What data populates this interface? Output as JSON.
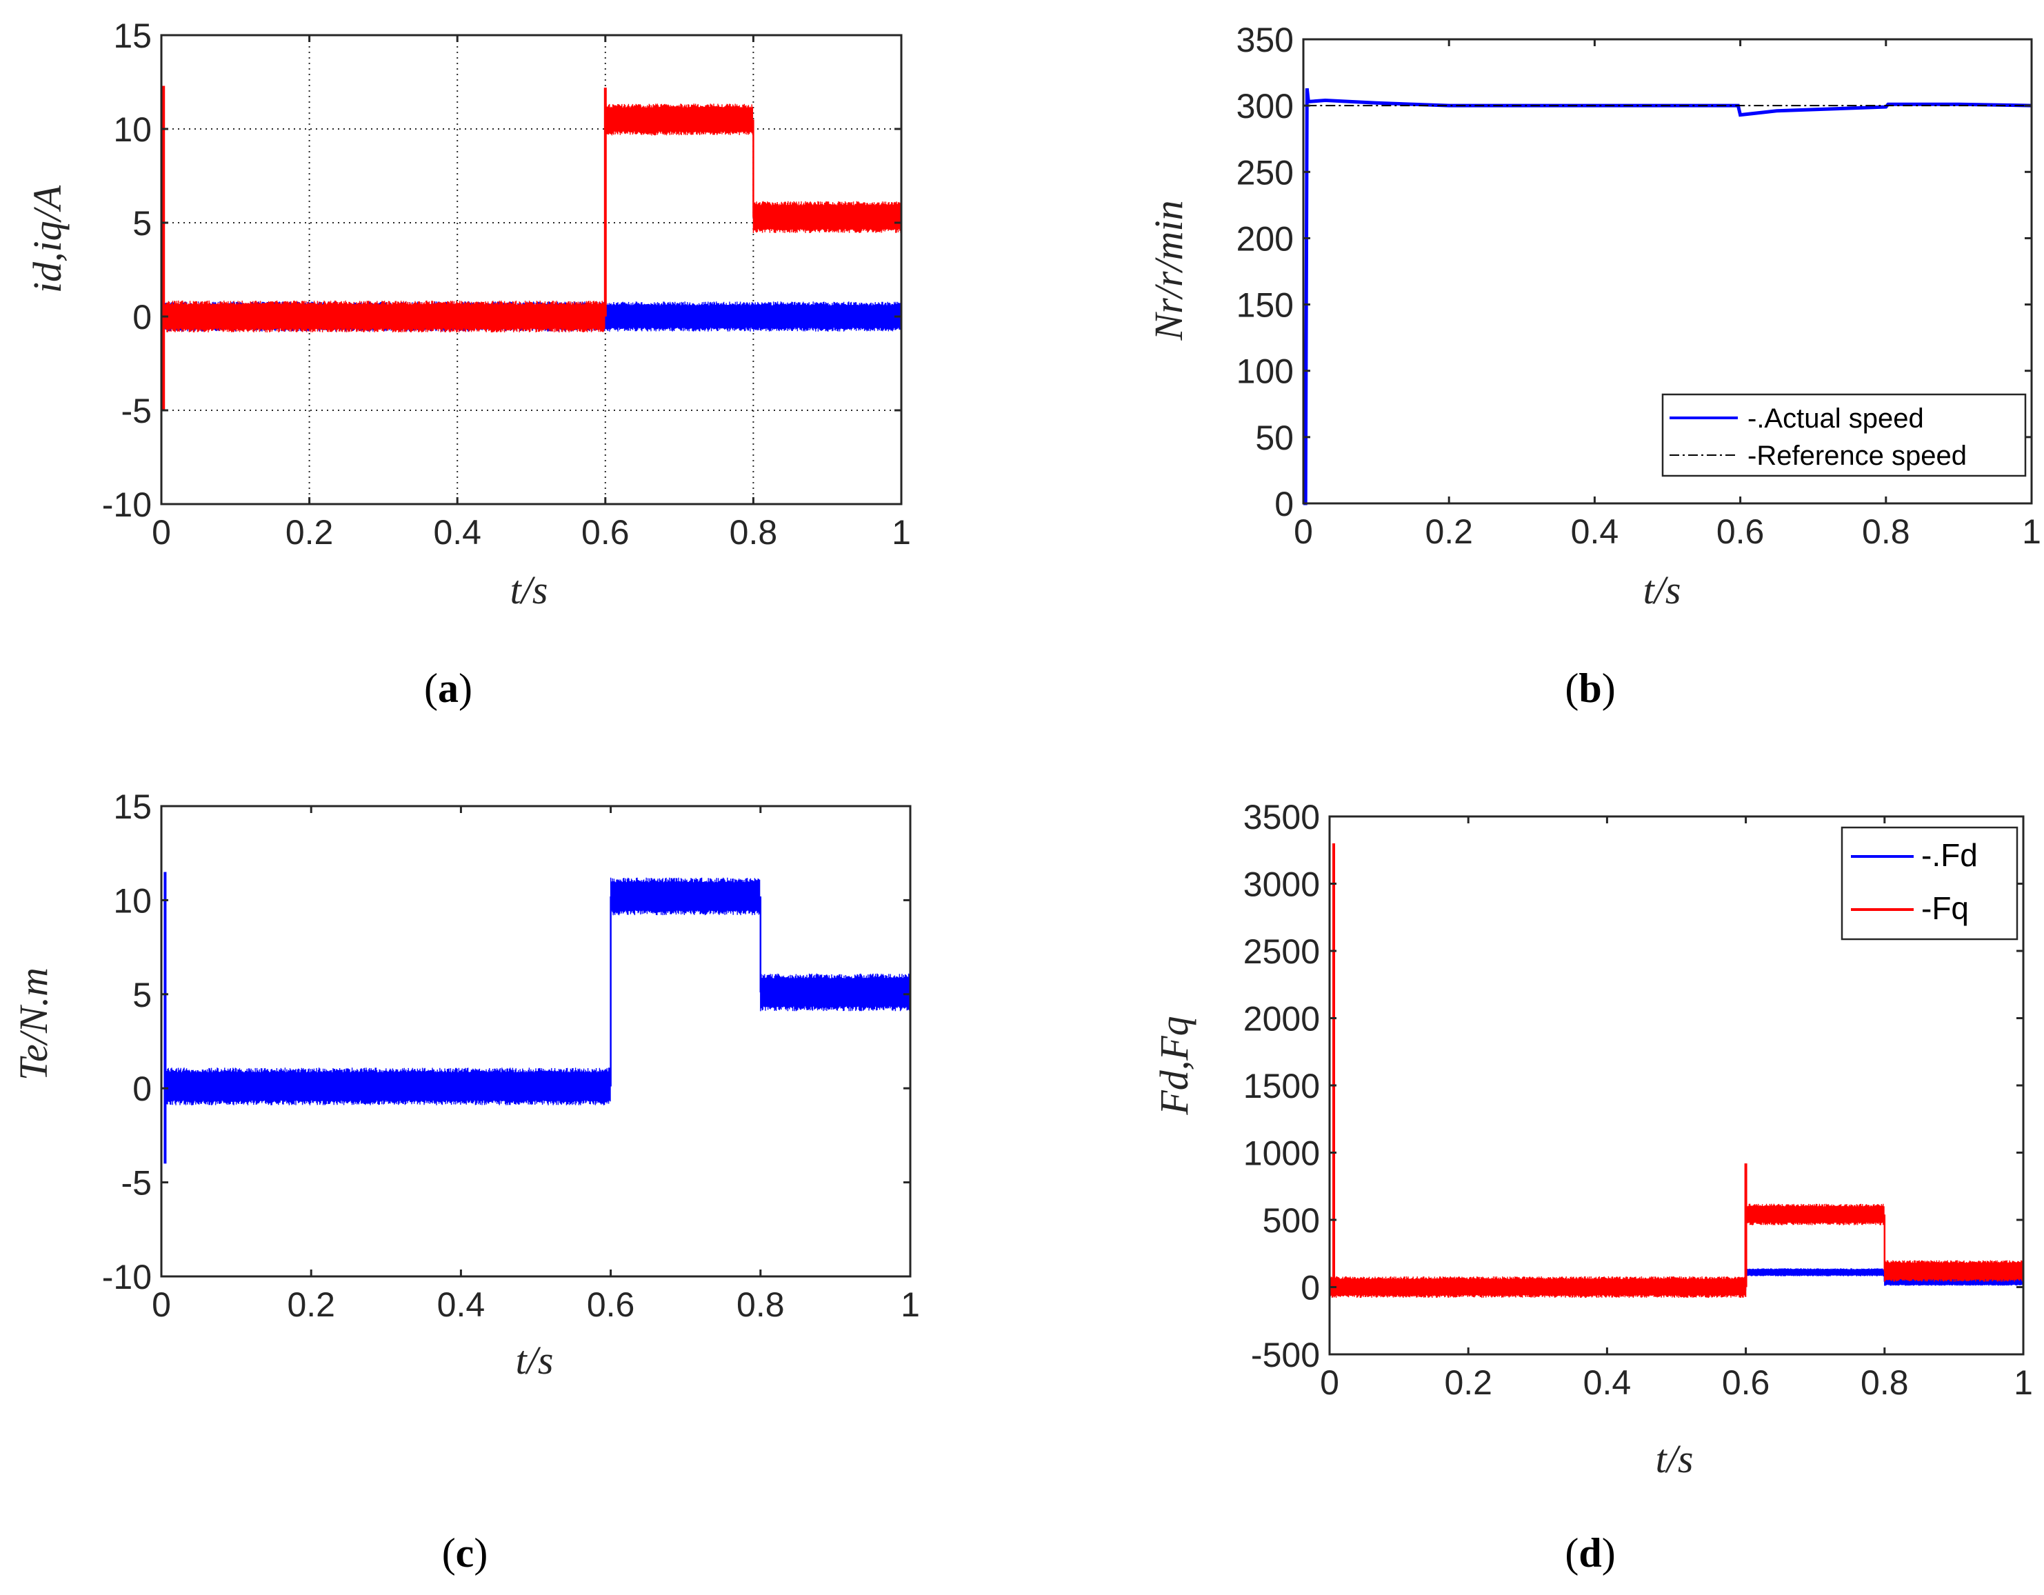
{
  "colors": {
    "id_blue": "#0000ff",
    "iq_red": "#ff0000",
    "axis": "#262626",
    "grid": "#262626",
    "reference": "#000000"
  },
  "chart_data": [
    {
      "panel": "a",
      "type": "line",
      "caption_letter": "a",
      "xlabel": "t/s",
      "ylabel": "id,iq/A",
      "xlim": [
        0,
        1
      ],
      "ylim": [
        -10,
        15
      ],
      "xticks": [
        "0",
        "0.2",
        "0.4",
        "0.6",
        "0.8",
        "1"
      ],
      "xtick_values": [
        0,
        0.2,
        0.4,
        0.6,
        0.8,
        1
      ],
      "yticks": [
        "-10",
        "-5",
        "0",
        "5",
        "10",
        "15"
      ],
      "ytick_values": [
        -10,
        -5,
        0,
        5,
        10,
        15
      ],
      "grid": true,
      "series": [
        {
          "name": "id",
          "color": "#0000ff",
          "noise": 0.8,
          "segments": [
            {
              "x0": 0.003,
              "x1": 1.0,
              "y": 0
            }
          ],
          "spikes": []
        },
        {
          "name": "iq",
          "color": "#ff0000",
          "noise": 0.85,
          "segments": [
            {
              "x0": 0.003,
              "x1": 0.6,
              "y": 0
            },
            {
              "x0": 0.6,
              "x1": 0.8,
              "y": 10.5
            },
            {
              "x0": 0.8,
              "x1": 1.0,
              "y": 5.3
            }
          ],
          "spikes": [
            {
              "x": 0.003,
              "ymin": -5,
              "ymax": 12.3
            },
            {
              "x": 0.6,
              "ymin": 0,
              "ymax": 12.2
            }
          ]
        }
      ]
    },
    {
      "panel": "b",
      "type": "line",
      "caption_letter": "b",
      "xlabel": "t/s",
      "ylabel": "Nr/r/min",
      "xlim": [
        0,
        1
      ],
      "ylim": [
        0,
        350
      ],
      "xticks": [
        "0",
        "0.2",
        "0.4",
        "0.6",
        "0.8",
        "1"
      ],
      "xtick_values": [
        0,
        0.2,
        0.4,
        0.6,
        0.8,
        1
      ],
      "yticks": [
        "0",
        "50",
        "100",
        "150",
        "200",
        "250",
        "300",
        "350"
      ],
      "ytick_values": [
        0,
        50,
        100,
        150,
        200,
        250,
        300,
        350
      ],
      "grid": false,
      "legend": {
        "position": "bottom-right",
        "entries": [
          "-.Actual speed",
          "-Reference speed"
        ]
      },
      "series": [
        {
          "name": "-.Actual speed",
          "color": "#0000ff",
          "points": [
            [
              0,
              0
            ],
            [
              0.003,
              0
            ],
            [
              0.005,
              313
            ],
            [
              0.007,
              303
            ],
            [
              0.03,
              304
            ],
            [
              0.1,
              302
            ],
            [
              0.2,
              300
            ],
            [
              0.4,
              300
            ],
            [
              0.597,
              300
            ],
            [
              0.6,
              293
            ],
            [
              0.65,
              296
            ],
            [
              0.8,
              299
            ],
            [
              0.803,
              301
            ],
            [
              0.9,
              301
            ],
            [
              1.0,
              300
            ]
          ]
        },
        {
          "name": "-Reference speed",
          "color": "#000000",
          "dashed": true,
          "points": [
            [
              0.005,
              300
            ],
            [
              1.0,
              300
            ]
          ]
        }
      ]
    },
    {
      "panel": "c",
      "type": "line",
      "caption_letter": "c",
      "xlabel": "t/s",
      "ylabel": "Te/N.m",
      "xlim": [
        0,
        1
      ],
      "ylim": [
        -10,
        15
      ],
      "xticks": [
        "0",
        "0.2",
        "0.4",
        "0.6",
        "0.8",
        "1"
      ],
      "xtick_values": [
        0,
        0.2,
        0.4,
        0.6,
        0.8,
        1
      ],
      "yticks": [
        "-10",
        "-5",
        "0",
        "5",
        "10",
        "15"
      ],
      "ytick_values": [
        -10,
        -5,
        0,
        5,
        10,
        15
      ],
      "grid": false,
      "series": [
        {
          "name": "Te",
          "color": "#0000ff",
          "noise": 1.0,
          "segments": [
            {
              "x0": 0.005,
              "x1": 0.6,
              "y": 0.1
            },
            {
              "x0": 0.6,
              "x1": 0.8,
              "y": 10.2
            },
            {
              "x0": 0.8,
              "x1": 1.0,
              "y": 5.1
            }
          ],
          "spikes": [
            {
              "x": 0.005,
              "ymin": -4,
              "ymax": 11.5
            }
          ]
        }
      ]
    },
    {
      "panel": "d",
      "type": "line",
      "caption_letter": "d",
      "xlabel": "t/s",
      "ylabel": "Fd,Fq",
      "xlim": [
        0,
        1
      ],
      "ylim": [
        -500,
        3500
      ],
      "xticks": [
        "0",
        "0.2",
        "0.4",
        "0.6",
        "0.8",
        "1"
      ],
      "xtick_values": [
        0,
        0.2,
        0.4,
        0.6,
        0.8,
        1
      ],
      "yticks": [
        "-500",
        "0",
        "500",
        "1000",
        "1500",
        "2000",
        "2500",
        "3000",
        "3500"
      ],
      "ytick_values": [
        -500,
        0,
        500,
        1000,
        1500,
        2000,
        2500,
        3000,
        3500
      ],
      "grid": false,
      "legend": {
        "position": "top-right",
        "entries": [
          "-.Fd",
          "-Fq"
        ]
      },
      "series": [
        {
          "name": "-.Fd",
          "color": "#0000ff",
          "noise": 30,
          "segments": [
            {
              "x0": 0.0,
              "x1": 0.6,
              "y": 0
            },
            {
              "x0": 0.6,
              "x1": 0.8,
              "y": 110
            },
            {
              "x0": 0.8,
              "x1": 1.0,
              "y": 40
            }
          ],
          "spikes": []
        },
        {
          "name": "-Fq",
          "color": "#ff0000",
          "noise": 80,
          "segments": [
            {
              "x0": 0.0,
              "x1": 0.6,
              "y": 0
            },
            {
              "x0": 0.6,
              "x1": 0.8,
              "y": 540
            },
            {
              "x0": 0.8,
              "x1": 1.0,
              "y": 120
            }
          ],
          "spikes": [
            {
              "x": 0.006,
              "ymin": 0,
              "ymax": 3300
            },
            {
              "x": 0.6,
              "ymin": 0,
              "ymax": 920
            }
          ]
        }
      ]
    }
  ]
}
